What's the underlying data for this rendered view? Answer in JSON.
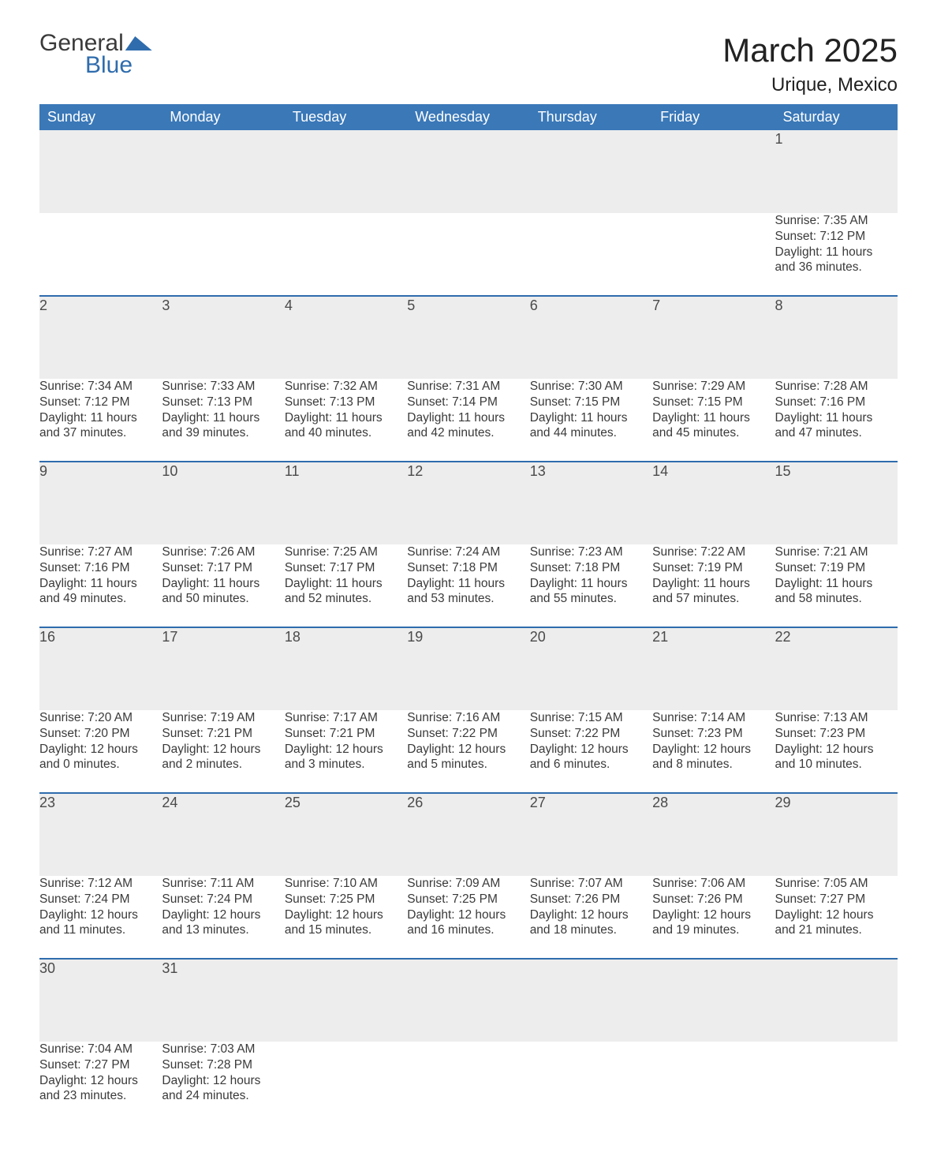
{
  "logo": {
    "word1": "General",
    "word2": "Blue"
  },
  "title": "March 2025",
  "location": "Urique, Mexico",
  "colors": {
    "header_bg": "#3a78b8",
    "header_text": "#ffffff",
    "row_divider": "#2f6cad",
    "daynum_bg": "#ededed",
    "text": "#3a3a3a",
    "page_bg": "#ffffff"
  },
  "typography": {
    "title_fontsize": 42,
    "location_fontsize": 24,
    "header_fontsize": 18,
    "daynum_fontsize": 18,
    "cell_fontsize": 15.5
  },
  "layout": {
    "columns": 7,
    "data_rows": 6,
    "cell_lines": 4
  },
  "weekdays": [
    "Sunday",
    "Monday",
    "Tuesday",
    "Wednesday",
    "Thursday",
    "Friday",
    "Saturday"
  ],
  "weeks": [
    [
      null,
      null,
      null,
      null,
      null,
      null,
      {
        "n": "1",
        "sunrise": "Sunrise: 7:35 AM",
        "sunset": "Sunset: 7:12 PM",
        "day1": "Daylight: 11 hours",
        "day2": "and 36 minutes."
      }
    ],
    [
      {
        "n": "2",
        "sunrise": "Sunrise: 7:34 AM",
        "sunset": "Sunset: 7:12 PM",
        "day1": "Daylight: 11 hours",
        "day2": "and 37 minutes."
      },
      {
        "n": "3",
        "sunrise": "Sunrise: 7:33 AM",
        "sunset": "Sunset: 7:13 PM",
        "day1": "Daylight: 11 hours",
        "day2": "and 39 minutes."
      },
      {
        "n": "4",
        "sunrise": "Sunrise: 7:32 AM",
        "sunset": "Sunset: 7:13 PM",
        "day1": "Daylight: 11 hours",
        "day2": "and 40 minutes."
      },
      {
        "n": "5",
        "sunrise": "Sunrise: 7:31 AM",
        "sunset": "Sunset: 7:14 PM",
        "day1": "Daylight: 11 hours",
        "day2": "and 42 minutes."
      },
      {
        "n": "6",
        "sunrise": "Sunrise: 7:30 AM",
        "sunset": "Sunset: 7:15 PM",
        "day1": "Daylight: 11 hours",
        "day2": "and 44 minutes."
      },
      {
        "n": "7",
        "sunrise": "Sunrise: 7:29 AM",
        "sunset": "Sunset: 7:15 PM",
        "day1": "Daylight: 11 hours",
        "day2": "and 45 minutes."
      },
      {
        "n": "8",
        "sunrise": "Sunrise: 7:28 AM",
        "sunset": "Sunset: 7:16 PM",
        "day1": "Daylight: 11 hours",
        "day2": "and 47 minutes."
      }
    ],
    [
      {
        "n": "9",
        "sunrise": "Sunrise: 7:27 AM",
        "sunset": "Sunset: 7:16 PM",
        "day1": "Daylight: 11 hours",
        "day2": "and 49 minutes."
      },
      {
        "n": "10",
        "sunrise": "Sunrise: 7:26 AM",
        "sunset": "Sunset: 7:17 PM",
        "day1": "Daylight: 11 hours",
        "day2": "and 50 minutes."
      },
      {
        "n": "11",
        "sunrise": "Sunrise: 7:25 AM",
        "sunset": "Sunset: 7:17 PM",
        "day1": "Daylight: 11 hours",
        "day2": "and 52 minutes."
      },
      {
        "n": "12",
        "sunrise": "Sunrise: 7:24 AM",
        "sunset": "Sunset: 7:18 PM",
        "day1": "Daylight: 11 hours",
        "day2": "and 53 minutes."
      },
      {
        "n": "13",
        "sunrise": "Sunrise: 7:23 AM",
        "sunset": "Sunset: 7:18 PM",
        "day1": "Daylight: 11 hours",
        "day2": "and 55 minutes."
      },
      {
        "n": "14",
        "sunrise": "Sunrise: 7:22 AM",
        "sunset": "Sunset: 7:19 PM",
        "day1": "Daylight: 11 hours",
        "day2": "and 57 minutes."
      },
      {
        "n": "15",
        "sunrise": "Sunrise: 7:21 AM",
        "sunset": "Sunset: 7:19 PM",
        "day1": "Daylight: 11 hours",
        "day2": "and 58 minutes."
      }
    ],
    [
      {
        "n": "16",
        "sunrise": "Sunrise: 7:20 AM",
        "sunset": "Sunset: 7:20 PM",
        "day1": "Daylight: 12 hours",
        "day2": "and 0 minutes."
      },
      {
        "n": "17",
        "sunrise": "Sunrise: 7:19 AM",
        "sunset": "Sunset: 7:21 PM",
        "day1": "Daylight: 12 hours",
        "day2": "and 2 minutes."
      },
      {
        "n": "18",
        "sunrise": "Sunrise: 7:17 AM",
        "sunset": "Sunset: 7:21 PM",
        "day1": "Daylight: 12 hours",
        "day2": "and 3 minutes."
      },
      {
        "n": "19",
        "sunrise": "Sunrise: 7:16 AM",
        "sunset": "Sunset: 7:22 PM",
        "day1": "Daylight: 12 hours",
        "day2": "and 5 minutes."
      },
      {
        "n": "20",
        "sunrise": "Sunrise: 7:15 AM",
        "sunset": "Sunset: 7:22 PM",
        "day1": "Daylight: 12 hours",
        "day2": "and 6 minutes."
      },
      {
        "n": "21",
        "sunrise": "Sunrise: 7:14 AM",
        "sunset": "Sunset: 7:23 PM",
        "day1": "Daylight: 12 hours",
        "day2": "and 8 minutes."
      },
      {
        "n": "22",
        "sunrise": "Sunrise: 7:13 AM",
        "sunset": "Sunset: 7:23 PM",
        "day1": "Daylight: 12 hours",
        "day2": "and 10 minutes."
      }
    ],
    [
      {
        "n": "23",
        "sunrise": "Sunrise: 7:12 AM",
        "sunset": "Sunset: 7:24 PM",
        "day1": "Daylight: 12 hours",
        "day2": "and 11 minutes."
      },
      {
        "n": "24",
        "sunrise": "Sunrise: 7:11 AM",
        "sunset": "Sunset: 7:24 PM",
        "day1": "Daylight: 12 hours",
        "day2": "and 13 minutes."
      },
      {
        "n": "25",
        "sunrise": "Sunrise: 7:10 AM",
        "sunset": "Sunset: 7:25 PM",
        "day1": "Daylight: 12 hours",
        "day2": "and 15 minutes."
      },
      {
        "n": "26",
        "sunrise": "Sunrise: 7:09 AM",
        "sunset": "Sunset: 7:25 PM",
        "day1": "Daylight: 12 hours",
        "day2": "and 16 minutes."
      },
      {
        "n": "27",
        "sunrise": "Sunrise: 7:07 AM",
        "sunset": "Sunset: 7:26 PM",
        "day1": "Daylight: 12 hours",
        "day2": "and 18 minutes."
      },
      {
        "n": "28",
        "sunrise": "Sunrise: 7:06 AM",
        "sunset": "Sunset: 7:26 PM",
        "day1": "Daylight: 12 hours",
        "day2": "and 19 minutes."
      },
      {
        "n": "29",
        "sunrise": "Sunrise: 7:05 AM",
        "sunset": "Sunset: 7:27 PM",
        "day1": "Daylight: 12 hours",
        "day2": "and 21 minutes."
      }
    ],
    [
      {
        "n": "30",
        "sunrise": "Sunrise: 7:04 AM",
        "sunset": "Sunset: 7:27 PM",
        "day1": "Daylight: 12 hours",
        "day2": "and 23 minutes."
      },
      {
        "n": "31",
        "sunrise": "Sunrise: 7:03 AM",
        "sunset": "Sunset: 7:28 PM",
        "day1": "Daylight: 12 hours",
        "day2": "and 24 minutes."
      },
      null,
      null,
      null,
      null,
      null
    ]
  ]
}
